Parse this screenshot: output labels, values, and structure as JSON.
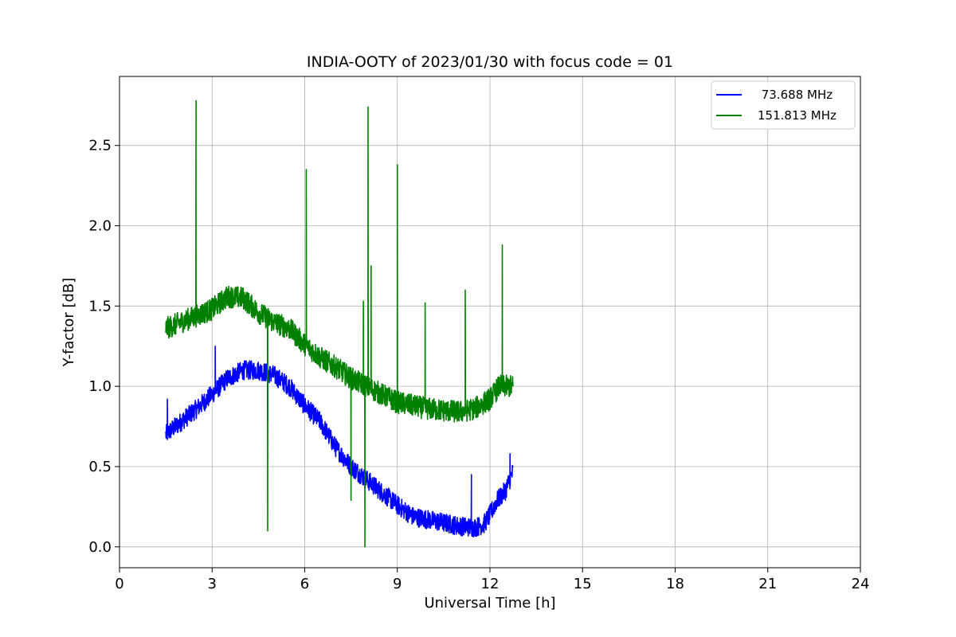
{
  "chart_data": {
    "type": "line",
    "title": "INDIA-OOTY of 2023/01/30 with focus code = 01",
    "xlabel": "Universal Time [h]",
    "ylabel": "Y-factor [dB]",
    "xlim": [
      0,
      24
    ],
    "ylim": [
      -0.13,
      2.93
    ],
    "xticks": [
      0,
      3,
      6,
      9,
      12,
      15,
      18,
      21,
      24
    ],
    "yticks": [
      0.0,
      0.5,
      1.0,
      1.5,
      2.0,
      2.5
    ],
    "xtick_labels": [
      "0",
      "3",
      "6",
      "9",
      "12",
      "15",
      "18",
      "21",
      "24"
    ],
    "ytick_labels": [
      "0.0",
      "0.5",
      "1.0",
      "1.5",
      "2.0",
      "2.5"
    ],
    "grid": true,
    "legend_position": "top-right",
    "series": [
      {
        "name": " 73.688 MHz",
        "color": "#0000ff",
        "noise": 0.06,
        "x": [
          1.5,
          2.0,
          2.5,
          3.0,
          3.5,
          4.0,
          4.5,
          5.0,
          5.5,
          6.0,
          6.5,
          7.0,
          7.5,
          8.0,
          8.5,
          9.0,
          9.5,
          10.0,
          10.5,
          11.0,
          11.5,
          11.8,
          12.0,
          12.2,
          12.5,
          12.75
        ],
        "y": [
          0.7,
          0.78,
          0.86,
          0.95,
          1.05,
          1.1,
          1.1,
          1.07,
          1.0,
          0.88,
          0.78,
          0.62,
          0.5,
          0.42,
          0.34,
          0.26,
          0.19,
          0.17,
          0.15,
          0.13,
          0.12,
          0.14,
          0.2,
          0.28,
          0.35,
          0.47
        ],
        "spikes": [
          {
            "x": 1.55,
            "y": 0.92
          },
          {
            "x": 3.1,
            "y": 1.25
          },
          {
            "x": 4.8,
            "y": 0.78
          },
          {
            "x": 11.4,
            "y": 0.45
          },
          {
            "x": 12.65,
            "y": 0.58
          }
        ]
      },
      {
        "name": "151.813 MHz",
        "color": "#008000",
        "noise": 0.07,
        "x": [
          1.5,
          2.0,
          2.5,
          3.0,
          3.5,
          4.0,
          4.5,
          5.0,
          5.5,
          6.0,
          6.5,
          7.0,
          7.5,
          8.0,
          8.5,
          9.0,
          9.5,
          10.0,
          10.5,
          11.0,
          11.5,
          12.0,
          12.3,
          12.75
        ],
        "y": [
          1.36,
          1.4,
          1.44,
          1.48,
          1.56,
          1.55,
          1.46,
          1.4,
          1.36,
          1.26,
          1.18,
          1.12,
          1.05,
          1.0,
          0.95,
          0.9,
          0.88,
          0.86,
          0.85,
          0.84,
          0.86,
          0.92,
          1.0,
          1.0
        ],
        "spikes": [
          {
            "x": 2.48,
            "y": 2.78
          },
          {
            "x": 4.8,
            "y": 0.1
          },
          {
            "x": 6.05,
            "y": 2.35
          },
          {
            "x": 7.5,
            "y": 0.29
          },
          {
            "x": 7.9,
            "y": 1.53
          },
          {
            "x": 7.95,
            "y": 0.0
          },
          {
            "x": 8.05,
            "y": 2.74
          },
          {
            "x": 8.15,
            "y": 1.75
          },
          {
            "x": 9.0,
            "y": 2.38
          },
          {
            "x": 9.9,
            "y": 1.52
          },
          {
            "x": 11.2,
            "y": 1.6
          },
          {
            "x": 12.4,
            "y": 1.88
          }
        ]
      }
    ]
  }
}
